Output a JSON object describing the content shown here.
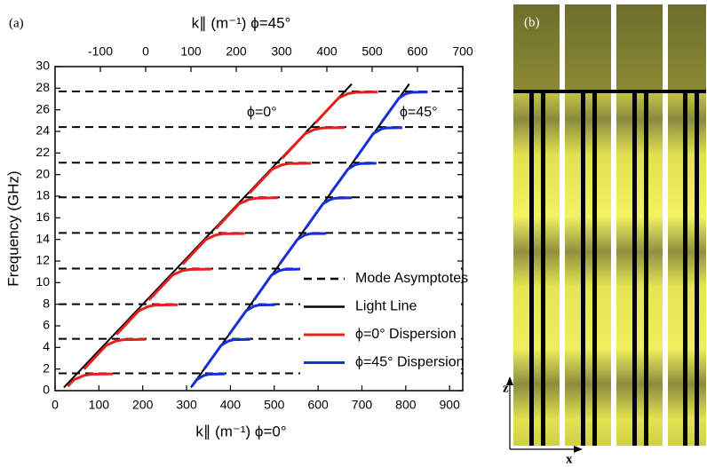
{
  "chart_data": {
    "type": "line",
    "panel_label": "(a)",
    "x_label": "k∥ (m⁻¹) ϕ=0°",
    "x2_label": "k∥ (m⁻¹) ϕ=45°",
    "y_label": "Frequency (GHz)",
    "annotations": [
      "ϕ=0°",
      "ϕ=45°"
    ],
    "xlim": [
      0,
      930
    ],
    "xticks": [
      0,
      100,
      200,
      300,
      400,
      500,
      600,
      700,
      800,
      900
    ],
    "x2lim": [
      -200,
      700
    ],
    "x2ticks": [
      -100,
      0,
      100,
      200,
      300,
      400,
      500,
      600,
      700
    ],
    "ylim": [
      0,
      30
    ],
    "yticks": [
      0,
      2,
      4,
      6,
      8,
      10,
      12,
      14,
      16,
      18,
      20,
      22,
      24,
      26,
      28,
      30
    ],
    "legend": "lower right",
    "series": [
      {
        "name": "Mode Asymptotes",
        "style": "dashed",
        "color": "#000000",
        "values": [
          1.6,
          4.8,
          8.0,
          11.3,
          14.6,
          17.9,
          21.1,
          24.4,
          27.7
        ]
      },
      {
        "name": "Light Line",
        "style": "solid",
        "color": "#000000",
        "x": [
          20,
          677,
          null,
          310,
          808
        ],
        "values": [
          0.3,
          28.4,
          null,
          0.3,
          28.4
        ]
      },
      {
        "name": "ϕ=0° Dispersion",
        "style": "solid",
        "color": "#e8201c",
        "x": [
          29,
          43,
          65,
          82,
          132,
          null,
          66,
          117,
          139,
          156,
          206,
          null,
          140,
          191,
          213,
          230,
          280,
          null,
          214,
          268,
          290,
          307,
          357,
          null,
          291,
          344,
          366,
          383,
          433,
          null,
          367,
          420,
          442,
          459,
          509,
          null,
          444,
          495,
          517,
          534,
          584,
          null,
          518,
          571,
          593,
          610,
          660,
          null,
          594,
          647,
          669,
          686,
          736
        ],
        "values": [
          0.4,
          1.0,
          1.4,
          1.52,
          1.55,
          null,
          2.0,
          4.2,
          4.6,
          4.72,
          4.75,
          null,
          5.2,
          7.4,
          7.8,
          7.92,
          7.95,
          null,
          8.4,
          10.7,
          11.1,
          11.22,
          11.25,
          null,
          11.7,
          14.0,
          14.4,
          14.52,
          14.55,
          null,
          15.0,
          17.3,
          17.7,
          17.82,
          17.85,
          null,
          18.3,
          20.5,
          20.9,
          21.02,
          21.05,
          null,
          21.5,
          23.8,
          24.2,
          24.32,
          24.35,
          null,
          24.8,
          27.1,
          27.5,
          27.62,
          27.65
        ]
      },
      {
        "name": "ϕ=45° Dispersion",
        "style": "solid",
        "color": "#1530d8",
        "x": [
          312,
          323,
          339,
          351,
          388,
          null,
          340,
          379,
          396,
          408,
          445,
          null,
          397,
          436,
          453,
          465,
          502,
          null,
          454,
          494,
          511,
          523,
          560,
          null,
          512,
          553,
          569,
          581,
          618,
          null,
          571,
          611,
          628,
          640,
          677,
          null,
          629,
          668,
          684,
          696,
          733,
          null,
          686,
          726,
          743,
          755,
          792,
          null,
          744,
          785,
          801,
          813,
          850
        ],
        "values": [
          0.4,
          1.0,
          1.4,
          1.52,
          1.55,
          null,
          2.0,
          4.2,
          4.6,
          4.72,
          4.75,
          null,
          5.2,
          7.4,
          7.8,
          7.92,
          7.95,
          null,
          8.4,
          10.7,
          11.1,
          11.22,
          11.25,
          null,
          11.7,
          14.0,
          14.4,
          14.52,
          14.55,
          null,
          15.0,
          17.3,
          17.7,
          17.82,
          17.85,
          null,
          18.3,
          20.5,
          20.9,
          21.02,
          21.05,
          null,
          21.5,
          23.8,
          24.2,
          24.32,
          24.35,
          null,
          24.8,
          27.1,
          27.5,
          27.62,
          27.65
        ]
      }
    ]
  },
  "panel_b": {
    "label": "(b)",
    "z_axis": "z",
    "x_axis": "x"
  }
}
